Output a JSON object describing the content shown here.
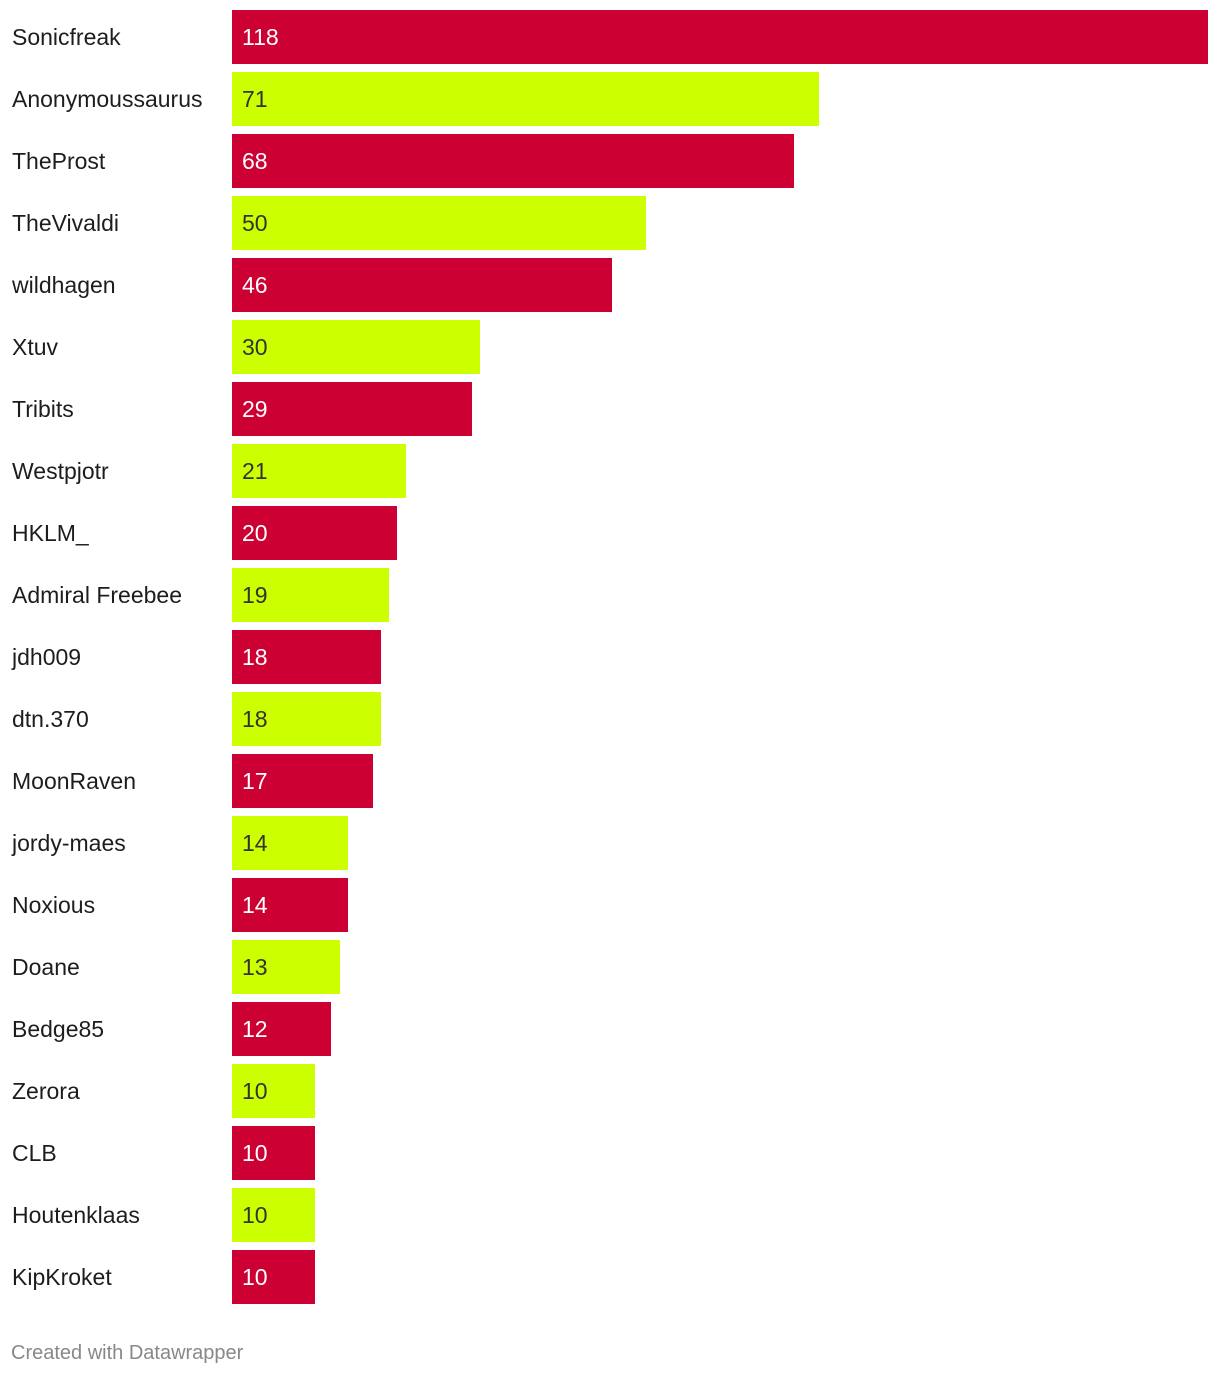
{
  "chart_data": {
    "type": "bar",
    "orientation": "horizontal",
    "categories": [
      "Sonicfreak",
      "Anonymoussaurus",
      "TheProst",
      "TheVivaldi",
      "wildhagen",
      "Xtuv",
      "Tribits",
      "Westpjotr",
      "HKLM_",
      "Admiral Freebee",
      "jdh009",
      "dtn.370",
      "MoonRaven",
      "jordy-maes",
      "Noxious",
      "Doane",
      "Bedge85",
      "Zerora",
      "CLB",
      "Houtenklaas",
      "KipKroket"
    ],
    "values": [
      118,
      71,
      68,
      50,
      46,
      30,
      29,
      21,
      20,
      19,
      18,
      18,
      17,
      14,
      14,
      13,
      12,
      10,
      10,
      10,
      10
    ],
    "xlim": [
      0,
      118
    ],
    "colors": [
      "#cc0033",
      "#ccff00"
    ],
    "value_label_colors": [
      "#ffffff",
      "#333333"
    ],
    "legend": "none",
    "grid": false
  },
  "footer": {
    "credit": "Created with Datawrapper"
  }
}
